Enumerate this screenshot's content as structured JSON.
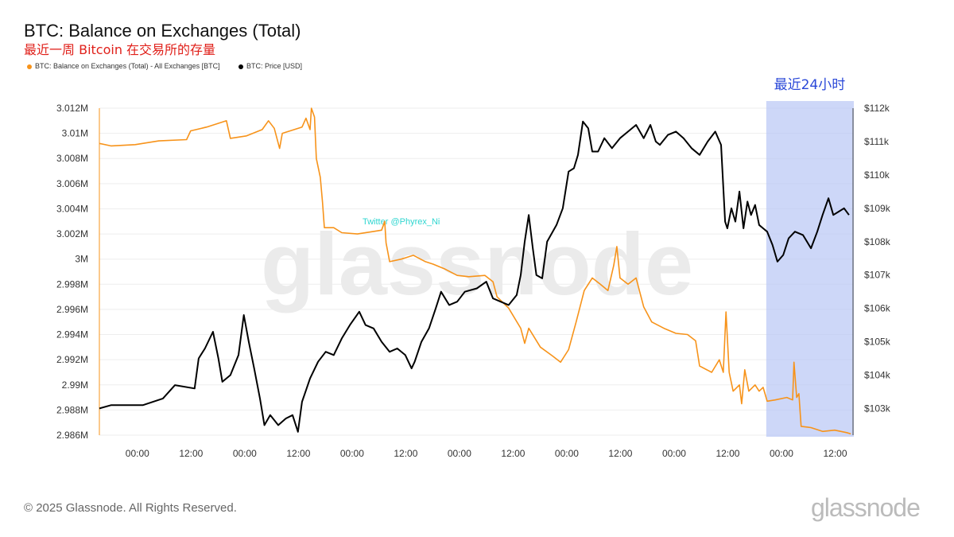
{
  "chart_data": {
    "type": "line",
    "title": "BTC: Balance on Exchanges (Total)",
    "subtitle": "最近一周 Bitcoin 在交易所的存量",
    "annotation": "最近24小时",
    "watermark": "glassnode",
    "twitter": "Twitter @Phyrex_Ni",
    "x_unit": "hours since first 00:00 tick",
    "x_range": [
      -8.5,
      160
    ],
    "highlight_range": [
      140.6,
      160
    ],
    "x_ticks": [
      0,
      12,
      24,
      36,
      48,
      60,
      72,
      84,
      96,
      108,
      120,
      132,
      144,
      156
    ],
    "x_tick_labels": [
      "00:00",
      "12:00",
      "00:00",
      "12:00",
      "00:00",
      "12:00",
      "00:00",
      "12:00",
      "00:00",
      "12:00",
      "00:00",
      "12:00",
      "00:00",
      "12:00"
    ],
    "y_left": {
      "range": [
        2.986,
        3.012
      ],
      "ticks": [
        3.012,
        3.01,
        3.008,
        3.006,
        3.004,
        3.002,
        3.0,
        2.998,
        2.996,
        2.994,
        2.992,
        2.99,
        2.988,
        2.986
      ],
      "tick_labels": [
        "3.012M",
        "3.01M",
        "3.008M",
        "3.006M",
        "3.004M",
        "3.002M",
        "3M",
        "2.998M",
        "2.996M",
        "2.994M",
        "2.992M",
        "2.99M",
        "2.988M",
        "2.986M"
      ]
    },
    "y_right": {
      "range": [
        102.2,
        112
      ],
      "ticks": [
        112,
        111,
        110,
        109,
        108,
        107,
        106,
        105,
        104,
        103
      ],
      "tick_labels": [
        "$112k",
        "$111k",
        "$110k",
        "$109k",
        "$108k",
        "$107k",
        "$106k",
        "$105k",
        "$104k",
        "$103k"
      ]
    },
    "series": [
      {
        "name": "BTC: Balance on Exchanges (Total) - All Exchanges [BTC]",
        "color": "#f7931a",
        "axis": "left",
        "unit": "M BTC",
        "x": [
          -8.5,
          -5.9,
          -0.5,
          4.8,
          11.0,
          11.9,
          15.5,
          19.9,
          20.8,
          24.4,
          27.9,
          29.3,
          30.6,
          31.8,
          32.4,
          36.8,
          37.7,
          38.6,
          38.9,
          39.6,
          40.0,
          40.9,
          41.4,
          41.8,
          43.9,
          45.7,
          49.2,
          52.8,
          54.6,
          55.3,
          55.6,
          56.4,
          59.0,
          61.7,
          64.4,
          66.1,
          68.8,
          71.5,
          74.1,
          77.7,
          79.5,
          80.4,
          83.0,
          85.7,
          86.6,
          87.5,
          90.1,
          92.8,
          94.6,
          96.4,
          98.1,
          99.9,
          101.7,
          103.5,
          105.2,
          106.5,
          107.2,
          107.9,
          109.7,
          111.5,
          113.2,
          115.0,
          117.7,
          120.4,
          123.0,
          124.8,
          125.7,
          128.4,
          130.1,
          131.0,
          131.6,
          132.3,
          133.2,
          134.6,
          135.1,
          135.8,
          136.7,
          138.1,
          139.0,
          139.9,
          140.8,
          142.6,
          145.2,
          146.5,
          146.8,
          147.4,
          147.9,
          148.4,
          150.6,
          153.2,
          155.9,
          158.6,
          159.5
        ],
        "y": [
          3.0092,
          3.009,
          3.0091,
          3.0094,
          3.0095,
          3.0102,
          3.0105,
          3.011,
          3.0096,
          3.0098,
          3.0103,
          3.011,
          3.0104,
          3.0088,
          3.01,
          3.0105,
          3.0112,
          3.0103,
          3.012,
          3.0113,
          3.008,
          3.0065,
          3.0045,
          3.0025,
          3.0025,
          3.0021,
          3.002,
          3.0022,
          3.0023,
          3.003,
          3.0013,
          2.9998,
          3.0,
          3.0003,
          2.9998,
          2.9996,
          2.9992,
          2.9987,
          2.9986,
          2.9987,
          2.9982,
          2.997,
          2.9961,
          2.9945,
          2.9933,
          2.9945,
          2.993,
          2.9923,
          2.9918,
          2.9928,
          2.995,
          2.9975,
          2.9985,
          2.998,
          2.9975,
          2.9995,
          3.001,
          2.9985,
          2.998,
          2.9985,
          2.9962,
          2.995,
          2.9945,
          2.9941,
          2.994,
          2.9935,
          2.9915,
          2.991,
          2.992,
          2.991,
          2.9958,
          2.991,
          2.9895,
          2.99,
          2.9885,
          2.9912,
          2.9895,
          2.99,
          2.9895,
          2.9898,
          2.9887,
          2.9888,
          2.989,
          2.9888,
          2.9918,
          2.989,
          2.9893,
          2.9867,
          2.9866,
          2.9863,
          2.9864,
          2.9862,
          2.9861
        ]
      },
      {
        "name": "BTC: Price [USD]",
        "color": "#000000",
        "axis": "right",
        "unit": "k USD",
        "x": [
          -8.5,
          -5.9,
          1.2,
          5.7,
          8.4,
          12.8,
          13.7,
          15.1,
          16.9,
          18.1,
          19.0,
          20.8,
          22.6,
          23.8,
          24.9,
          26.1,
          27.4,
          28.4,
          29.7,
          31.5,
          33.2,
          34.7,
          35.9,
          36.8,
          38.6,
          40.4,
          42.1,
          43.9,
          45.7,
          47.5,
          49.6,
          51.0,
          52.8,
          54.6,
          56.4,
          58.1,
          59.9,
          61.3,
          62.0,
          63.5,
          65.2,
          66.7,
          67.9,
          69.7,
          71.5,
          73.2,
          75.9,
          78.0,
          79.5,
          81.2,
          83.0,
          84.8,
          85.7,
          86.6,
          87.5,
          88.4,
          89.2,
          90.5,
          91.6,
          93.7,
          95.1,
          96.4,
          97.6,
          98.5,
          99.6,
          100.8,
          101.7,
          103.0,
          104.4,
          106.1,
          107.9,
          109.7,
          111.5,
          113.2,
          114.7,
          115.9,
          116.8,
          118.6,
          120.4,
          122.1,
          123.9,
          125.7,
          127.5,
          129.2,
          130.5,
          131.4,
          131.9,
          132.8,
          133.7,
          134.6,
          135.5,
          136.4,
          137.2,
          138.1,
          139.0,
          139.9,
          140.8,
          142.0,
          143.1,
          144.4,
          145.6,
          147.0,
          148.8,
          150.6,
          152.0,
          153.2,
          154.5,
          155.6,
          156.8,
          158.0,
          159.1
        ],
        "y": [
          103.0,
          103.1,
          103.1,
          103.3,
          103.7,
          103.6,
          104.5,
          104.8,
          105.3,
          104.5,
          103.8,
          104.0,
          104.6,
          105.8,
          105.0,
          104.2,
          103.3,
          102.5,
          102.8,
          102.5,
          102.7,
          102.8,
          102.3,
          103.2,
          103.9,
          104.4,
          104.7,
          104.6,
          105.1,
          105.5,
          105.9,
          105.5,
          105.4,
          105.0,
          104.7,
          104.8,
          104.6,
          104.2,
          104.4,
          105.0,
          105.4,
          106.0,
          106.5,
          106.1,
          106.2,
          106.5,
          106.6,
          106.8,
          106.3,
          106.2,
          106.1,
          106.4,
          107.0,
          108.0,
          108.8,
          107.8,
          107.0,
          106.9,
          108.0,
          108.5,
          109.0,
          110.1,
          110.2,
          110.6,
          111.6,
          111.4,
          110.7,
          110.7,
          111.1,
          110.8,
          111.1,
          111.3,
          111.5,
          111.1,
          111.5,
          111.0,
          110.9,
          111.2,
          111.3,
          111.1,
          110.8,
          110.6,
          111.0,
          111.3,
          110.9,
          108.6,
          108.4,
          109.0,
          108.6,
          109.5,
          108.4,
          109.2,
          108.8,
          109.1,
          108.5,
          108.4,
          108.3,
          107.9,
          107.4,
          107.6,
          108.1,
          108.3,
          108.2,
          107.8,
          108.3,
          108.8,
          109.3,
          108.8,
          108.9,
          109.0,
          108.8
        ]
      }
    ],
    "footer": "© 2025 Glassnode. All Rights Reserved.",
    "logo": "glassnode"
  }
}
